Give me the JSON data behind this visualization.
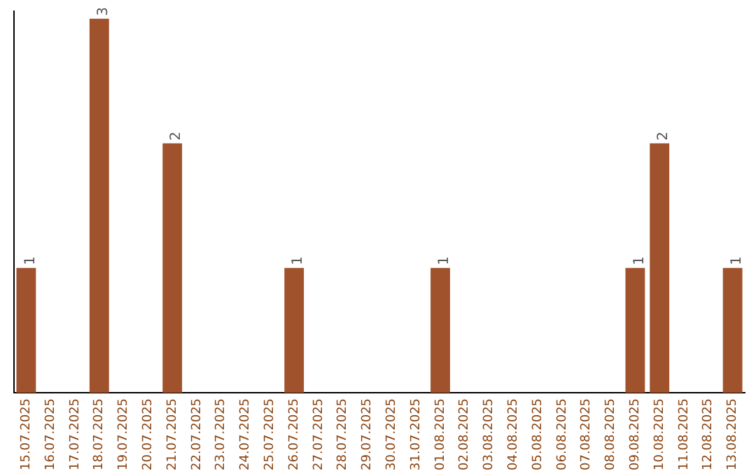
{
  "chart_data": {
    "type": "bar",
    "categories": [
      "15.07.2025",
      "16.07.2025",
      "17.07.2025",
      "18.07.2025",
      "19.07.2025",
      "20.07.2025",
      "21.07.2025",
      "22.07.2025",
      "23.07.2025",
      "24.07.2025",
      "25.07.2025",
      "26.07.2025",
      "27.07.2025",
      "28.07.2025",
      "29.07.2025",
      "30.07.2025",
      "31.07.2025",
      "01.08.2025",
      "02.08.2025",
      "03.08.2025",
      "04.08.2025",
      "05.08.2025",
      "06.08.2025",
      "07.08.2025",
      "08.08.2025",
      "09.08.2025",
      "10.08.2025",
      "11.08.2025",
      "12.08.2025",
      "13.08.2025"
    ],
    "values": [
      1,
      0,
      0,
      3,
      0,
      0,
      2,
      0,
      0,
      0,
      0,
      1,
      0,
      0,
      0,
      0,
      0,
      1,
      0,
      0,
      0,
      0,
      0,
      0,
      0,
      1,
      2,
      0,
      0,
      1
    ],
    "value_labels": [
      "1",
      null,
      null,
      "3",
      null,
      null,
      "2",
      null,
      null,
      null,
      null,
      "1",
      null,
      null,
      null,
      null,
      null,
      "1",
      null,
      null,
      null,
      null,
      null,
      null,
      null,
      "1",
      "2",
      null,
      null,
      "1"
    ],
    "color": "#a0522d",
    "grid": false,
    "legend": false
  }
}
